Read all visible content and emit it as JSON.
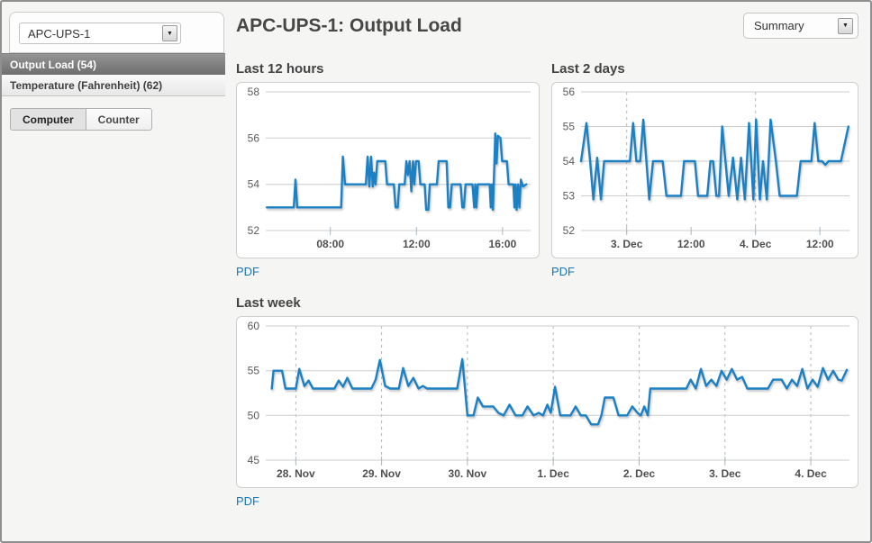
{
  "sidebar": {
    "device_select": {
      "value": "APC-UPS-1"
    },
    "channels": [
      {
        "label": "Output Load (54)",
        "selected": true
      },
      {
        "label": "Temperature (Fahrenheit) (62)",
        "selected": false
      }
    ],
    "tabs": [
      {
        "label": "Computer",
        "active": true
      },
      {
        "label": "Counter",
        "active": false
      }
    ]
  },
  "header": {
    "title": "APC-UPS-1: Output Load",
    "view_select": {
      "value": "Summary"
    }
  },
  "colors": {
    "line": "#1b80c4",
    "link": "#1577b8",
    "grid": "#cccccc",
    "background": "#f5f5f4"
  },
  "chart_data": [
    {
      "type": "line",
      "title": "Last 12 hours",
      "pdf_label": "PDF",
      "line_color": "#1b80c4",
      "x_unit": "hour of day",
      "xlim": [
        5.0,
        17.3
      ],
      "ylim": [
        52,
        58
      ],
      "yticks": [
        52,
        54,
        56,
        58
      ],
      "xticks": [
        {
          "x": 8,
          "label": "08:00"
        },
        {
          "x": 12,
          "label": "12:00"
        },
        {
          "x": 16,
          "label": "16:00"
        }
      ],
      "vlines": [],
      "points": [
        [
          5.05,
          53
        ],
        [
          6.3,
          53
        ],
        [
          6.38,
          54.2
        ],
        [
          6.46,
          53
        ],
        [
          8.5,
          53
        ],
        [
          8.58,
          55.2
        ],
        [
          8.68,
          54
        ],
        [
          9.65,
          54
        ],
        [
          9.73,
          55.2
        ],
        [
          9.81,
          53.9
        ],
        [
          9.89,
          55.2
        ],
        [
          9.97,
          53.9
        ],
        [
          10.03,
          54.5
        ],
        [
          10.1,
          54
        ],
        [
          10.18,
          55
        ],
        [
          10.55,
          55
        ],
        [
          10.63,
          54
        ],
        [
          10.95,
          54
        ],
        [
          11.03,
          53
        ],
        [
          11.13,
          53
        ],
        [
          11.2,
          54
        ],
        [
          11.45,
          54
        ],
        [
          11.53,
          55
        ],
        [
          11.6,
          54.4
        ],
        [
          11.68,
          55
        ],
        [
          11.76,
          53.7
        ],
        [
          11.84,
          55
        ],
        [
          11.9,
          54
        ],
        [
          11.98,
          55
        ],
        [
          12.1,
          55
        ],
        [
          12.18,
          54
        ],
        [
          12.38,
          54
        ],
        [
          12.45,
          52.9
        ],
        [
          12.55,
          52.9
        ],
        [
          12.62,
          54
        ],
        [
          12.95,
          54
        ],
        [
          13.03,
          55
        ],
        [
          13.4,
          55
        ],
        [
          13.48,
          53
        ],
        [
          13.56,
          53
        ],
        [
          13.64,
          54
        ],
        [
          14.05,
          54
        ],
        [
          14.13,
          53
        ],
        [
          14.2,
          53
        ],
        [
          14.28,
          54
        ],
        [
          14.6,
          54
        ],
        [
          14.68,
          53
        ],
        [
          14.73,
          54
        ],
        [
          14.78,
          53
        ],
        [
          14.85,
          54
        ],
        [
          15.4,
          54
        ],
        [
          15.45,
          53
        ],
        [
          15.5,
          54
        ],
        [
          15.55,
          52.9
        ],
        [
          15.62,
          54.9
        ],
        [
          15.66,
          56.2
        ],
        [
          15.72,
          54.9
        ],
        [
          15.78,
          56.1
        ],
        [
          15.9,
          56
        ],
        [
          15.98,
          55
        ],
        [
          16.2,
          55
        ],
        [
          16.28,
          54
        ],
        [
          16.5,
          54
        ],
        [
          16.55,
          53
        ],
        [
          16.6,
          54
        ],
        [
          16.65,
          52.9
        ],
        [
          16.72,
          54
        ],
        [
          16.78,
          53
        ],
        [
          16.85,
          54.2
        ],
        [
          16.95,
          53.9
        ],
        [
          17.1,
          54
        ]
      ]
    },
    {
      "type": "line",
      "title": "Last 2 days",
      "pdf_label": "PDF",
      "line_color": "#1b80c4",
      "x_unit": "hours from 3. Dec 00:00",
      "xlim": [
        -8.5,
        41.5
      ],
      "ylim": [
        52,
        56
      ],
      "yticks": [
        52,
        53,
        54,
        55,
        56
      ],
      "xticks": [
        {
          "x": 0,
          "label": "3. Dec"
        },
        {
          "x": 12,
          "label": "12:00"
        },
        {
          "x": 24,
          "label": "4. Dec"
        },
        {
          "x": 36,
          "label": "12:00"
        }
      ],
      "vlines": [
        0,
        24
      ],
      "points": [
        [
          -8.5,
          54
        ],
        [
          -7.5,
          55.1
        ],
        [
          -6.8,
          54
        ],
        [
          -6.2,
          52.9
        ],
        [
          -5.5,
          54.1
        ],
        [
          -4.8,
          52.9
        ],
        [
          -4.2,
          54
        ],
        [
          0.6,
          54
        ],
        [
          1.2,
          55.1
        ],
        [
          1.8,
          54
        ],
        [
          2.5,
          54
        ],
        [
          3.1,
          55.2
        ],
        [
          4.2,
          52.9
        ],
        [
          4.9,
          54
        ],
        [
          6.7,
          54
        ],
        [
          7.4,
          53
        ],
        [
          10.1,
          53
        ],
        [
          10.7,
          54
        ],
        [
          12.7,
          54
        ],
        [
          13.3,
          53
        ],
        [
          15.0,
          53
        ],
        [
          15.6,
          54
        ],
        [
          16.1,
          54
        ],
        [
          16.7,
          53
        ],
        [
          17.2,
          53
        ],
        [
          17.8,
          55
        ],
        [
          19.0,
          53
        ],
        [
          19.8,
          54.1
        ],
        [
          20.6,
          52.9
        ],
        [
          21.3,
          54.1
        ],
        [
          22.0,
          52.9
        ],
        [
          22.8,
          55.1
        ],
        [
          23.6,
          52.9
        ],
        [
          24.1,
          55.2
        ],
        [
          24.8,
          52.9
        ],
        [
          25.4,
          54
        ],
        [
          26.1,
          52.9
        ],
        [
          26.8,
          55.2
        ],
        [
          27.8,
          54
        ],
        [
          28.5,
          53
        ],
        [
          31.7,
          53
        ],
        [
          32.4,
          54
        ],
        [
          34.4,
          54
        ],
        [
          35.0,
          55.1
        ],
        [
          35.7,
          54
        ],
        [
          36.4,
          54
        ],
        [
          37.0,
          53.9
        ],
        [
          37.6,
          54
        ],
        [
          39.9,
          54
        ],
        [
          41.3,
          55
        ]
      ]
    },
    {
      "type": "line",
      "title": "Last week",
      "pdf_label": "PDF",
      "line_color": "#1b80c4",
      "x_unit": "days from 28. Nov 00:00",
      "xlim": [
        -0.35,
        6.45
      ],
      "ylim": [
        45,
        60
      ],
      "yticks": [
        45,
        50,
        55,
        60
      ],
      "xticks": [
        {
          "x": 0,
          "label": "28. Nov"
        },
        {
          "x": 1,
          "label": "29. Nov"
        },
        {
          "x": 2,
          "label": "30. Nov"
        },
        {
          "x": 3,
          "label": "1. Dec"
        },
        {
          "x": 4,
          "label": "2. Dec"
        },
        {
          "x": 5,
          "label": "3. Dec"
        },
        {
          "x": 6,
          "label": "4. Dec"
        }
      ],
      "vlines": [
        0,
        1,
        2,
        3,
        4,
        5,
        6
      ],
      "points": [
        [
          -0.28,
          53
        ],
        [
          -0.26,
          55
        ],
        [
          -0.16,
          55
        ],
        [
          -0.12,
          53
        ],
        [
          0.0,
          53
        ],
        [
          0.04,
          55.2
        ],
        [
          0.1,
          53.3
        ],
        [
          0.15,
          53.9
        ],
        [
          0.2,
          53
        ],
        [
          0.45,
          53
        ],
        [
          0.5,
          53.9
        ],
        [
          0.55,
          53.2
        ],
        [
          0.6,
          54.2
        ],
        [
          0.66,
          53
        ],
        [
          0.88,
          53
        ],
        [
          0.93,
          54
        ],
        [
          0.98,
          56.2
        ],
        [
          1.04,
          53.3
        ],
        [
          1.1,
          53
        ],
        [
          1.2,
          53
        ],
        [
          1.25,
          55.3
        ],
        [
          1.31,
          53.3
        ],
        [
          1.37,
          54.2
        ],
        [
          1.43,
          53
        ],
        [
          1.48,
          53.3
        ],
        [
          1.53,
          53
        ],
        [
          1.88,
          53
        ],
        [
          1.94,
          56.3
        ],
        [
          2.0,
          50
        ],
        [
          2.07,
          50
        ],
        [
          2.12,
          52
        ],
        [
          2.18,
          51
        ],
        [
          2.3,
          51
        ],
        [
          2.36,
          50.3
        ],
        [
          2.42,
          50
        ],
        [
          2.49,
          51.2
        ],
        [
          2.56,
          50
        ],
        [
          2.64,
          50
        ],
        [
          2.7,
          51
        ],
        [
          2.77,
          50
        ],
        [
          2.83,
          50.3
        ],
        [
          2.88,
          50
        ],
        [
          2.93,
          51.2
        ],
        [
          2.97,
          50.3
        ],
        [
          3.02,
          53.2
        ],
        [
          3.08,
          50
        ],
        [
          3.2,
          50
        ],
        [
          3.26,
          51
        ],
        [
          3.32,
          50
        ],
        [
          3.38,
          50
        ],
        [
          3.44,
          49
        ],
        [
          3.52,
          49
        ],
        [
          3.56,
          50
        ],
        [
          3.6,
          52
        ],
        [
          3.7,
          52
        ],
        [
          3.76,
          50
        ],
        [
          3.86,
          50
        ],
        [
          3.92,
          51
        ],
        [
          3.98,
          50.3
        ],
        [
          4.02,
          50
        ],
        [
          4.06,
          51
        ],
        [
          4.1,
          50
        ],
        [
          4.13,
          53
        ],
        [
          4.55,
          53
        ],
        [
          4.6,
          54
        ],
        [
          4.66,
          53
        ],
        [
          4.72,
          55.2
        ],
        [
          4.78,
          53.3
        ],
        [
          4.84,
          54
        ],
        [
          4.9,
          53.3
        ],
        [
          4.96,
          55
        ],
        [
          5.02,
          54
        ],
        [
          5.08,
          55.2
        ],
        [
          5.14,
          54
        ],
        [
          5.2,
          54.3
        ],
        [
          5.26,
          53
        ],
        [
          5.5,
          53
        ],
        [
          5.56,
          54
        ],
        [
          5.66,
          54
        ],
        [
          5.72,
          53
        ],
        [
          5.78,
          54
        ],
        [
          5.84,
          53.3
        ],
        [
          5.9,
          55.2
        ],
        [
          5.96,
          53
        ],
        [
          6.02,
          54
        ],
        [
          6.08,
          53.2
        ],
        [
          6.14,
          55.3
        ],
        [
          6.2,
          54
        ],
        [
          6.26,
          55
        ],
        [
          6.32,
          54
        ],
        [
          6.36,
          53.9
        ],
        [
          6.42,
          55.1
        ]
      ]
    }
  ]
}
